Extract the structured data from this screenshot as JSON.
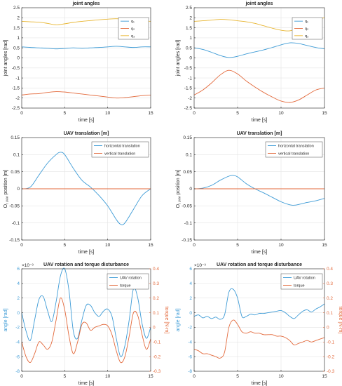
{
  "colors": {
    "blue": "#3d9bd6",
    "orange": "#e3693b",
    "yellow": "#e8b632",
    "dark": "#3a3a3a",
    "grid": "#e4e4e4",
    "axis": "#262626"
  },
  "panels": [
    {
      "id": "joint-angles-left",
      "title": "joint angles",
      "xlabel": "time [s]",
      "ylabel": "joint angles [rad]",
      "xticks": [
        "0",
        "5",
        "10",
        "15"
      ],
      "yticks": [
        "-2.5",
        "-2",
        "-1.5",
        "-1",
        "-0.5",
        "0",
        "0.5",
        "1",
        "1.5",
        "2",
        "2.5"
      ],
      "legend": [
        "q₁",
        "q₂",
        "q₃"
      ],
      "legend_position": "top-right"
    },
    {
      "id": "joint-angles-right",
      "title": "joint angles",
      "xlabel": "time [s]",
      "ylabel": "joint angles [rad]",
      "xticks": [
        "0",
        "5",
        "10",
        "15"
      ],
      "yticks": [
        "-2.5",
        "-2",
        "-1.5",
        "-1",
        "-0.5",
        "0",
        "0.5",
        "1",
        "1.5",
        "2",
        "2.5"
      ],
      "legend": [
        "q₁",
        "q₂",
        "q₃"
      ],
      "legend_position": "top-right"
    },
    {
      "id": "uav-translation-left",
      "title": "UAV translation [m]",
      "xlabel": "time [s]",
      "ylabel": "OₜUAV position [m]",
      "ylabel_main": "O",
      "ylabel_sub": "t UAV",
      "ylabel_rest": " position [m]",
      "xticks": [
        "0",
        "5",
        "10",
        "15"
      ],
      "yticks": [
        "-0.15",
        "-0.1",
        "-0.05",
        "0",
        "0.05",
        "0.1",
        "0.15"
      ],
      "legend": [
        "horizontal translation",
        "vertical translation"
      ],
      "legend_position": "top-right"
    },
    {
      "id": "uav-translation-right",
      "title": "UAV translation [m]",
      "xlabel": "time [s]",
      "ylabel_main": "O",
      "ylabel_sub": "t UAV",
      "ylabel_rest": " position [m]",
      "xticks": [
        "0",
        "5",
        "10",
        "15"
      ],
      "yticks": [
        "-0.15",
        "-0.1",
        "-0.05",
        "0",
        "0.05",
        "0.1",
        "0.15"
      ],
      "legend": [
        "horizontal translation",
        "vertical translation"
      ],
      "legend_position": "top-right"
    },
    {
      "id": "uav-rotation-left",
      "title": "UAV rotation and torque disturbance",
      "xlabel": "time [s]",
      "ylabel": "angle [rad]",
      "ylabel_right": "torque [N·m]",
      "exponent": "×10⁻³",
      "xticks": [
        "0",
        "5",
        "10",
        "15"
      ],
      "yticks": [
        "-8",
        "-6",
        "-4",
        "-2",
        "0",
        "2",
        "4",
        "6"
      ],
      "yticks_right": [
        "-0.3",
        "-0.2",
        "-0.1",
        "0",
        "0.1",
        "0.2",
        "0.3",
        "0.4"
      ],
      "legend": [
        "UAV rotation",
        "torque"
      ],
      "legend_position": "top-right"
    },
    {
      "id": "uav-rotation-right",
      "title": "UAV rotation and torque disturbance",
      "xlabel": "time [s]",
      "ylabel": "angle [rad]",
      "ylabel_right": "torque [N·m]",
      "exponent": "×10⁻³",
      "xticks": [
        "0",
        "5",
        "10",
        "15"
      ],
      "yticks": [
        "-8",
        "-6",
        "-4",
        "-2",
        "0",
        "2",
        "4",
        "6"
      ],
      "yticks_right": [
        "-0.3",
        "-0.2",
        "-0.1",
        "0",
        "0.1",
        "0.2",
        "0.3",
        "0.4"
      ],
      "legend": [
        "UAV rotation",
        "torque"
      ],
      "legend_position": "top-right"
    }
  ],
  "chart_data": [
    {
      "type": "line",
      "title": "joint angles",
      "xlabel": "time [s]",
      "ylabel": "joint angles [rad]",
      "xlim": [
        0,
        15
      ],
      "ylim": [
        -2.5,
        2.5
      ],
      "grid": true,
      "legend_position": "top-right",
      "series": [
        {
          "name": "q₁",
          "color": "blue",
          "x": [
            0,
            1,
            2,
            3,
            4,
            5,
            6,
            7,
            8,
            9,
            10,
            11,
            12,
            13,
            14,
            15
          ],
          "y": [
            0.55,
            0.52,
            0.5,
            0.48,
            0.45,
            0.47,
            0.5,
            0.48,
            0.5,
            0.52,
            0.55,
            0.58,
            0.55,
            0.52,
            0.55,
            0.55
          ]
        },
        {
          "name": "q₂",
          "color": "orange",
          "x": [
            0,
            1,
            2,
            3,
            4,
            5,
            6,
            7,
            8,
            9,
            10,
            11,
            12,
            13,
            14,
            15
          ],
          "y": [
            -1.85,
            -1.8,
            -1.78,
            -1.72,
            -1.68,
            -1.7,
            -1.75,
            -1.8,
            -1.85,
            -1.9,
            -1.95,
            -2.0,
            -1.98,
            -1.93,
            -1.88,
            -1.85
          ]
        },
        {
          "name": "q₃",
          "color": "yellow",
          "x": [
            0,
            1,
            2,
            3,
            4,
            5,
            6,
            7,
            8,
            9,
            10,
            11,
            12,
            13,
            14,
            15
          ],
          "y": [
            1.82,
            1.8,
            1.78,
            1.72,
            1.65,
            1.7,
            1.77,
            1.82,
            1.86,
            1.9,
            1.93,
            1.95,
            1.92,
            1.88,
            1.85,
            1.82
          ]
        }
      ]
    },
    {
      "type": "line",
      "title": "joint angles",
      "xlabel": "time [s]",
      "ylabel": "joint angles [rad]",
      "xlim": [
        0,
        15
      ],
      "ylim": [
        -2.5,
        2.5
      ],
      "grid": true,
      "legend_position": "top-right",
      "series": [
        {
          "name": "q₁",
          "color": "blue",
          "x": [
            0,
            1,
            2,
            3,
            4,
            5,
            6,
            7,
            8,
            9,
            10,
            11,
            12,
            13,
            14,
            15
          ],
          "y": [
            0.5,
            0.42,
            0.28,
            0.12,
            0.02,
            0.08,
            0.2,
            0.3,
            0.4,
            0.52,
            0.65,
            0.75,
            0.72,
            0.62,
            0.52,
            0.45
          ]
        },
        {
          "name": "q₂",
          "color": "orange",
          "x": [
            0,
            1,
            2,
            3,
            4,
            5,
            6,
            7,
            8,
            9,
            10,
            11,
            12,
            13,
            14,
            15
          ],
          "y": [
            -1.85,
            -1.6,
            -1.25,
            -0.85,
            -0.62,
            -0.8,
            -1.15,
            -1.45,
            -1.72,
            -1.95,
            -2.15,
            -2.22,
            -2.1,
            -1.85,
            -1.6,
            -1.5
          ]
        },
        {
          "name": "q₃",
          "color": "yellow",
          "x": [
            0,
            1,
            2,
            3,
            4,
            5,
            6,
            7,
            8,
            9,
            10,
            11,
            12,
            13,
            14,
            15
          ],
          "y": [
            1.82,
            1.85,
            1.88,
            1.92,
            1.9,
            1.85,
            1.8,
            1.72,
            1.6,
            1.48,
            1.38,
            1.35,
            1.5,
            1.7,
            1.9,
            2.0
          ]
        }
      ]
    },
    {
      "type": "line",
      "title": "UAV translation [m]",
      "xlabel": "time [s]",
      "ylabel": "OₜUAV position [m]",
      "xlim": [
        0,
        15
      ],
      "ylim": [
        -0.15,
        0.15
      ],
      "grid": true,
      "legend_position": "top-right",
      "series": [
        {
          "name": "horizontal translation",
          "color": "blue",
          "x": [
            0,
            1,
            2,
            3,
            4,
            4.5,
            5,
            6,
            7,
            8,
            9,
            10,
            11,
            11.5,
            12,
            13,
            14,
            15
          ],
          "y": [
            0,
            0.005,
            0.04,
            0.075,
            0.1,
            0.107,
            0.1,
            0.06,
            0.025,
            0.005,
            -0.02,
            -0.05,
            -0.09,
            -0.104,
            -0.1,
            -0.06,
            -0.02,
            0
          ]
        },
        {
          "name": "vertical translation",
          "color": "orange",
          "x": [
            0,
            15
          ],
          "y": [
            0,
            0
          ]
        }
      ]
    },
    {
      "type": "line",
      "title": "UAV translation [m]",
      "xlabel": "time [s]",
      "ylabel": "OₜUAV position [m]",
      "xlim": [
        0,
        15
      ],
      "ylim": [
        -0.15,
        0.15
      ],
      "grid": true,
      "legend_position": "top-right",
      "series": [
        {
          "name": "horizontal translation",
          "color": "blue",
          "x": [
            0,
            1,
            2,
            3,
            4,
            4.5,
            5,
            6,
            7,
            8,
            9,
            10,
            11,
            11.5,
            12,
            13,
            14,
            15
          ],
          "y": [
            0,
            0.002,
            0.01,
            0.025,
            0.037,
            0.039,
            0.035,
            0.015,
            0,
            -0.012,
            -0.025,
            -0.038,
            -0.047,
            -0.048,
            -0.046,
            -0.04,
            -0.035,
            -0.028
          ]
        },
        {
          "name": "vertical translation",
          "color": "orange",
          "x": [
            0,
            15
          ],
          "y": [
            0,
            0
          ]
        }
      ]
    },
    {
      "type": "line",
      "title": "UAV rotation and torque disturbance",
      "xlabel": "time [s]",
      "ylabel": "angle [rad]",
      "ylabel_right": "torque [N·m]",
      "y_exponent": "×10⁻³",
      "xlim": [
        0,
        15
      ],
      "ylim": [
        -8,
        6
      ],
      "ylim_right": [
        -0.3,
        0.4
      ],
      "grid": true,
      "legend_position": "top-right",
      "series": [
        {
          "name": "UAV rotation",
          "axis": "left",
          "color": "blue",
          "x": [
            0,
            0.5,
            1,
            1.5,
            2,
            2.5,
            3,
            3.5,
            4,
            4.5,
            5,
            5.5,
            6,
            6.5,
            7,
            7.5,
            8,
            8.5,
            9,
            9.5,
            10,
            10.5,
            11,
            11.5,
            12,
            12.5,
            13,
            13.5,
            14,
            14.5,
            15
          ],
          "y": [
            0,
            -2.5,
            -3.8,
            -1,
            1.8,
            2.2,
            0.3,
            -1.2,
            1.5,
            5,
            6,
            3,
            -2.5,
            -3.5,
            -1,
            1,
            1,
            0,
            -0.5,
            0.2,
            0.5,
            -0.5,
            -3.5,
            -6,
            -4.5,
            -1,
            3.3,
            2,
            -1.5,
            -3.5,
            -2
          ]
        },
        {
          "name": "torque",
          "axis": "right",
          "color": "orange",
          "x": [
            0,
            0.5,
            1,
            1.5,
            2,
            2.5,
            3,
            3.5,
            4,
            4.5,
            5,
            5.5,
            6,
            6.5,
            7,
            7.5,
            8,
            8.5,
            9,
            9.5,
            10,
            10.5,
            11,
            11.5,
            12,
            12.5,
            13,
            13.5,
            14,
            14.5,
            15
          ],
          "y": [
            -0.1,
            -0.2,
            -0.24,
            -0.18,
            -0.1,
            -0.12,
            -0.15,
            -0.1,
            0.05,
            0.2,
            0.12,
            -0.06,
            -0.18,
            -0.1,
            0.02,
            0.03,
            -0.02,
            0,
            0.01,
            0.02,
            0.01,
            -0.05,
            -0.16,
            -0.24,
            -0.2,
            -0.06,
            0.1,
            0.08,
            -0.05,
            -0.15,
            -0.08
          ]
        }
      ]
    },
    {
      "type": "line",
      "title": "UAV rotation and torque disturbance",
      "xlabel": "time [s]",
      "ylabel": "angle [rad]",
      "ylabel_right": "torque [N·m]",
      "y_exponent": "×10⁻³",
      "xlim": [
        0,
        15
      ],
      "ylim": [
        -8,
        6
      ],
      "ylim_right": [
        -0.3,
        0.4
      ],
      "grid": true,
      "legend_position": "top-right",
      "series": [
        {
          "name": "UAV rotation",
          "axis": "left",
          "color": "blue",
          "x": [
            0,
            0.5,
            1,
            1.5,
            2,
            2.5,
            3,
            3.5,
            4,
            4.5,
            5,
            5.5,
            6,
            6.5,
            7,
            7.5,
            8,
            8.5,
            9,
            9.5,
            10,
            10.5,
            11,
            11.5,
            12,
            12.5,
            13,
            13.5,
            14,
            14.5,
            15
          ],
          "y": [
            -0.5,
            -0.3,
            -0.7,
            -0.5,
            -0.8,
            -0.6,
            -0.9,
            -0.3,
            2.8,
            3.2,
            2,
            -0.5,
            -0.5,
            -0.2,
            -0.3,
            -0.1,
            -0.1,
            0,
            0.1,
            0.2,
            0.3,
            0,
            -0.5,
            -0.8,
            -0.3,
            0.2,
            0.4,
            0.1,
            0.5,
            0.8,
            1.2
          ]
        },
        {
          "name": "torque",
          "axis": "right",
          "color": "orange",
          "x": [
            0,
            0.5,
            1,
            1.5,
            2,
            2.5,
            3,
            3.5,
            4,
            4.5,
            5,
            5.5,
            6,
            6.5,
            7,
            7.5,
            8,
            8.5,
            9,
            9.5,
            10,
            10.5,
            11,
            11.5,
            12,
            12.5,
            13,
            13.5,
            14,
            14.5,
            15
          ],
          "y": [
            -0.15,
            -0.16,
            -0.18,
            -0.18,
            -0.19,
            -0.2,
            -0.21,
            -0.17,
            0.0,
            0.05,
            0.02,
            -0.03,
            -0.04,
            -0.03,
            -0.04,
            -0.04,
            -0.05,
            -0.05,
            -0.05,
            -0.06,
            -0.06,
            -0.07,
            -0.09,
            -0.12,
            -0.11,
            -0.1,
            -0.09,
            -0.1,
            -0.09,
            -0.08,
            -0.07
          ]
        }
      ]
    }
  ]
}
